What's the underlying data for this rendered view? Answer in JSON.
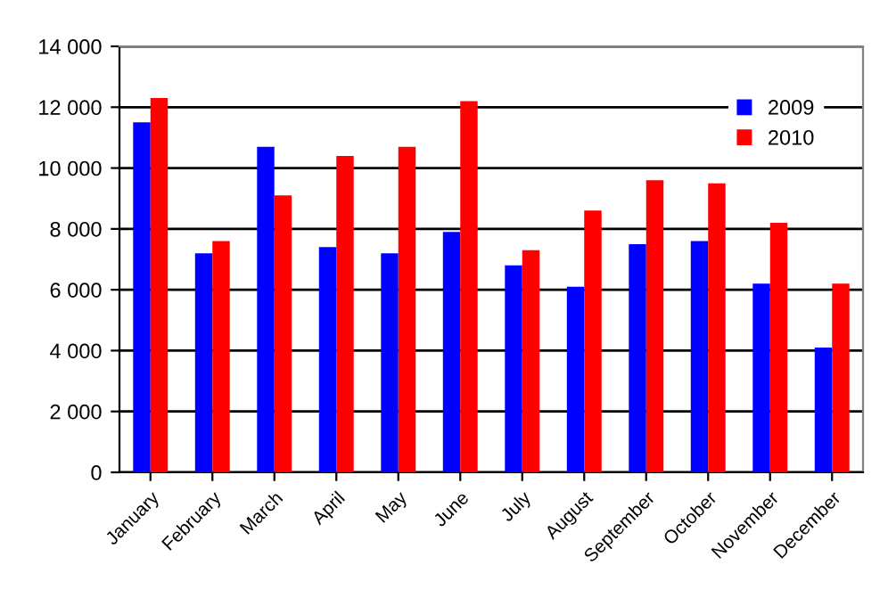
{
  "chart_data": {
    "type": "bar",
    "categories": [
      "January",
      "February",
      "March",
      "April",
      "May",
      "June",
      "July",
      "August",
      "September",
      "October",
      "November",
      "December"
    ],
    "series": [
      {
        "name": "2009",
        "color": "#0000ff",
        "values": [
          11500,
          7200,
          10700,
          7400,
          7200,
          7900,
          6800,
          6100,
          7500,
          7600,
          6200,
          4100
        ]
      },
      {
        "name": "2010",
        "color": "#ff0000",
        "values": [
          12300,
          7600,
          9100,
          10400,
          10700,
          12200,
          7300,
          8600,
          9600,
          9500,
          8200,
          6200
        ]
      }
    ],
    "ylim": [
      0,
      14000
    ],
    "yticks": [
      0,
      {
        "value": 2000,
        "label": "2 000"
      },
      {
        "value": 4000,
        "label": "4 000"
      },
      {
        "value": 6000,
        "label": "6 000"
      },
      {
        "value": 8000,
        "label": "8 000"
      },
      {
        "value": 10000,
        "label": "10 000"
      },
      {
        "value": 12000,
        "label": "12 000"
      },
      {
        "value": 14000,
        "label": "14 000"
      }
    ],
    "grid": "y",
    "legend": "top right"
  }
}
